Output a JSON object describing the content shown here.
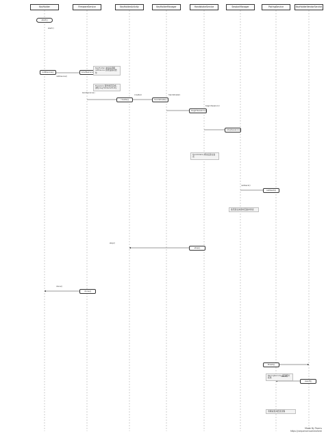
{
  "lanes": [
    {
      "label": "KeyHolder"
    },
    {
      "label": "FirmwareService"
    },
    {
      "label": "KeyHolderActivity"
    },
    {
      "label": "KeyHolderManager"
    },
    {
      "label": "HandshakeService"
    },
    {
      "label": "SessionManager"
    },
    {
      "label": "PairingService"
    },
    {
      "label": "KeyHolderVendorService"
    }
  ],
  "boxes": {
    "start": "start()",
    "init_device": "initDevice()",
    "bind_service": "bindService()",
    "create1": "create()",
    "handshake1": "handshake()",
    "begin_session": "beginSession()",
    "stop": "stop()",
    "stop_session": "stopSession()",
    "callback": "callback()",
    "done": "done()",
    "finish": "finish()",
    "result": "result()"
  },
  "notes": [
    {
      "text": "KeyHolder 启动后调用 initDevice 完成设备初始化"
    },
    {
      "text": "Firmware 服务绑定完成，通知 KeyHolderActivity"
    },
    {
      "text": "Handshake 成功后建立会话"
    },
    {
      "text": "会话建立失败时回退并重试"
    },
    {
      "text": "PairingService 返回配对结果"
    },
    {
      "text": "清理资源并结束流程"
    }
  ],
  "messages": [
    {
      "text": "start()"
    },
    {
      "text": "initDevice()"
    },
    {
      "text": "bindService()"
    },
    {
      "text": "create()"
    },
    {
      "text": "handshake()"
    },
    {
      "text": "beginSession()"
    },
    {
      "text": "callback()"
    },
    {
      "text": "stop()"
    },
    {
      "text": "done()"
    },
    {
      "text": "result()"
    }
  ],
  "footer": {
    "line1": "Made By Teams",
    "line2": "https://sequence.somewhere"
  }
}
